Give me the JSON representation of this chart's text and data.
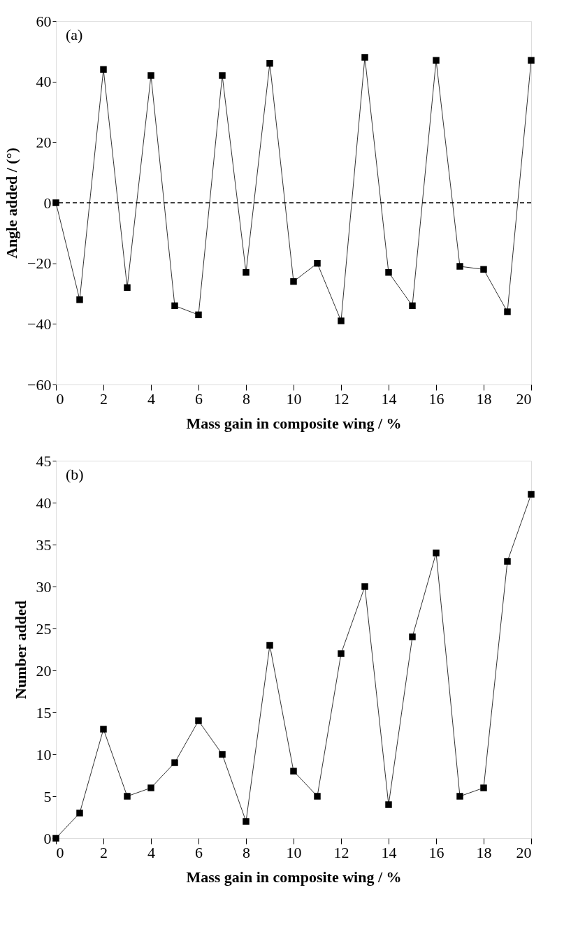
{
  "chart_data": [
    {
      "type": "line",
      "xlabel": "Mass gain in composite wing / %",
      "ylabel": "Angle added / (°)",
      "annotations": [
        "(a)"
      ],
      "x": [
        0,
        1,
        2,
        3,
        4,
        5,
        6,
        7,
        8,
        9,
        10,
        11,
        12,
        13,
        14,
        15,
        16,
        17,
        18,
        19,
        20
      ],
      "series": [
        {
          "color": "#000000",
          "values": [
            0,
            -32,
            44,
            -28,
            42,
            -34,
            -37,
            42,
            -23,
            46,
            -26,
            -20,
            -39,
            48,
            -23,
            -34,
            47,
            -21,
            -22,
            -36,
            47
          ]
        }
      ],
      "xlim": [
        0,
        20
      ],
      "xticks": [
        0,
        2,
        4,
        6,
        8,
        10,
        12,
        14,
        16,
        18,
        20
      ],
      "ylim": [
        -60,
        60
      ],
      "yticks": [
        -60,
        -40,
        -20,
        0,
        20,
        40,
        60
      ],
      "ref_lines": [
        {
          "axis": "y",
          "value": 0,
          "line_style": "dashed",
          "color": "#000000"
        }
      ],
      "marker": "square",
      "line_style": "solid",
      "grid": false
    },
    {
      "type": "line",
      "xlabel": "Mass gain in composite wing / %",
      "ylabel": "Number added",
      "annotations": [
        "(b)"
      ],
      "x": [
        0,
        1,
        2,
        3,
        4,
        5,
        6,
        7,
        8,
        9,
        10,
        11,
        12,
        13,
        14,
        15,
        16,
        17,
        18,
        19,
        20
      ],
      "series": [
        {
          "color": "#000000",
          "values": [
            0,
            3,
            13,
            5,
            6,
            9,
            14,
            10,
            2,
            23,
            8,
            5,
            22,
            30,
            4,
            24,
            34,
            5,
            6,
            33,
            41
          ]
        }
      ],
      "xlim": [
        0,
        20
      ],
      "xticks": [
        0,
        2,
        4,
        6,
        8,
        10,
        12,
        14,
        16,
        18,
        20
      ],
      "ylim": [
        0,
        45
      ],
      "yticks": [
        0,
        5,
        10,
        15,
        20,
        25,
        30,
        35,
        40,
        45
      ],
      "marker": "square",
      "line_style": "solid",
      "grid": false
    }
  ]
}
